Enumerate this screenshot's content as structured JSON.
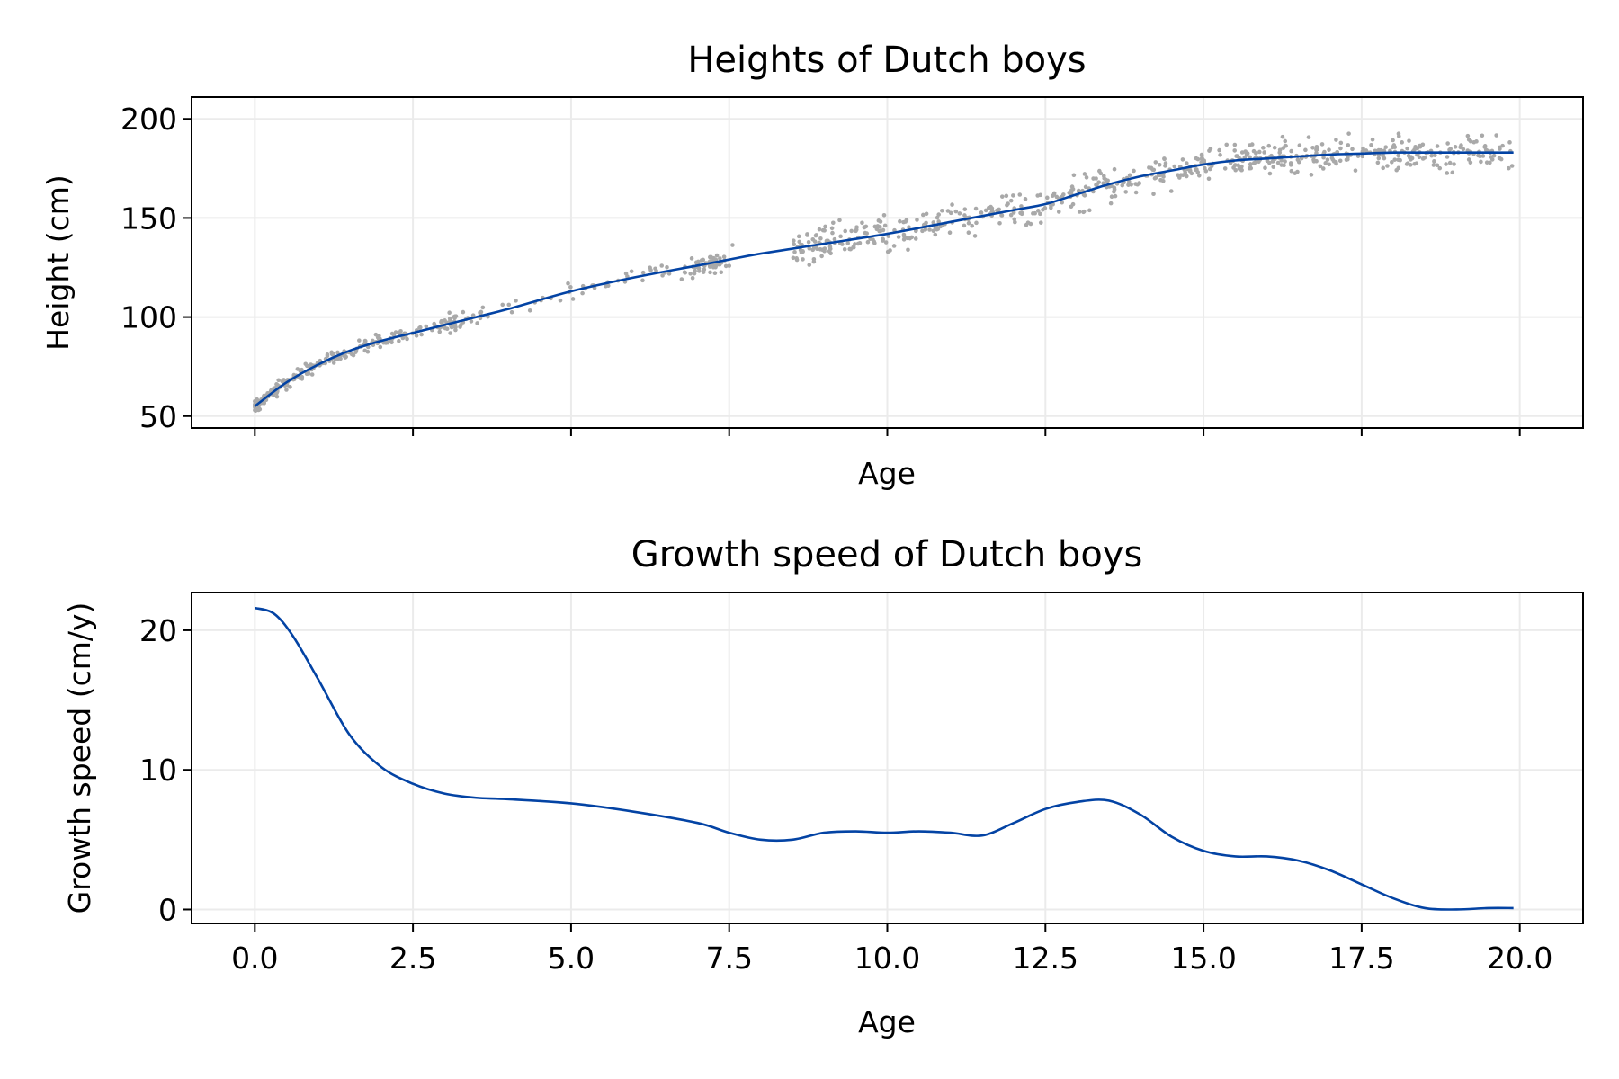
{
  "colors": {
    "line": "#0343a4",
    "points": "#a9a9a9",
    "grid": "#ebebeb"
  },
  "chart_data": [
    {
      "type": "scatter",
      "title": "Heights of Dutch boys",
      "xlabel": "Age",
      "ylabel": "Height (cm)",
      "xlim": [
        -1.0,
        21.0
      ],
      "ylim": [
        44,
        211
      ],
      "grid": true,
      "xticks": [
        0.0,
        2.5,
        5.0,
        7.5,
        10.0,
        12.5,
        15.0,
        17.5,
        20.0
      ],
      "xtick_labels_visible": false,
      "yticks": [
        50,
        100,
        150,
        200
      ],
      "ytick_labels": [
        "50",
        "100",
        "150",
        "200"
      ],
      "series": [
        {
          "kind": "line",
          "x": [
            0,
            0.5,
            1,
            1.5,
            2,
            2.5,
            3,
            3.5,
            4,
            5,
            6,
            7,
            7.5,
            8,
            9,
            10,
            11,
            12,
            12.5,
            13,
            13.5,
            14,
            14.5,
            15,
            15.5,
            16,
            16.5,
            17,
            17.5,
            18,
            18.5,
            19,
            19.5,
            19.9
          ],
          "y": [
            55,
            67,
            76,
            83,
            88,
            92,
            96,
            100,
            104,
            113,
            120,
            126,
            129,
            132,
            137,
            142,
            148,
            154,
            157,
            162,
            167,
            171,
            174,
            177,
            179,
            180,
            181,
            182,
            182.5,
            183,
            183,
            183,
            183,
            183
          ]
        },
        {
          "kind": "scatter",
          "description_of_density": "noisy measurements around the fitted line, dense at ages 0-3 and 8.5-20"
        }
      ]
    },
    {
      "type": "line",
      "title": "Growth speed of Dutch boys",
      "xlabel": "Age",
      "ylabel": "Growth speed (cm/y)",
      "xlim": [
        -1.0,
        21.0
      ],
      "ylim": [
        -1.0,
        22.7
      ],
      "grid": true,
      "xticks": [
        0.0,
        2.5,
        5.0,
        7.5,
        10.0,
        12.5,
        15.0,
        17.5,
        20.0
      ],
      "xtick_labels": [
        "0.0",
        "2.5",
        "5.0",
        "7.5",
        "10.0",
        "12.5",
        "15.0",
        "17.5",
        "20.0"
      ],
      "yticks": [
        0,
        10,
        20
      ],
      "ytick_labels": [
        "0",
        "10",
        "20"
      ],
      "series": [
        {
          "x": [
            0,
            0.3,
            0.6,
            1,
            1.5,
            2,
            2.5,
            3,
            3.5,
            4,
            5,
            6,
            7,
            7.5,
            8,
            8.5,
            9,
            9.5,
            10,
            10.5,
            11,
            11.5,
            12,
            12.5,
            13,
            13.5,
            14,
            14.5,
            15,
            15.5,
            16,
            16.5,
            17,
            17.5,
            18,
            18.5,
            19,
            19.5,
            19.9
          ],
          "y": [
            21.6,
            21.2,
            19.6,
            16.5,
            12.5,
            10.2,
            9.0,
            8.3,
            8.0,
            7.9,
            7.6,
            7.0,
            6.2,
            5.5,
            5.0,
            5.0,
            5.5,
            5.6,
            5.5,
            5.6,
            5.5,
            5.3,
            6.2,
            7.2,
            7.7,
            7.8,
            6.8,
            5.2,
            4.2,
            3.8,
            3.8,
            3.5,
            2.8,
            1.8,
            0.8,
            0.1,
            0.0,
            0.1,
            0.1
          ]
        }
      ]
    }
  ]
}
